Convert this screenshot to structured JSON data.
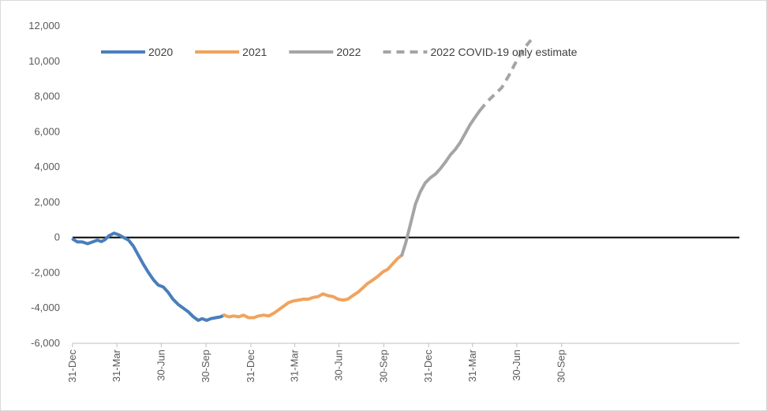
{
  "chart_data": {
    "type": "line",
    "title": "",
    "xlabel": "",
    "ylabel": "",
    "ylim": [
      -6000,
      12000
    ],
    "xlim": [
      "2019-12-31",
      "2023-09-30"
    ],
    "yticks": [
      -6000,
      -4000,
      -2000,
      0,
      2000,
      4000,
      6000,
      8000,
      10000,
      12000
    ],
    "ytick_labels": [
      "-6,000",
      "-4,000",
      "-2,000",
      "0",
      "2,000",
      "4,000",
      "6,000",
      "8,000",
      "10,000",
      "12,000"
    ],
    "xticks": [
      "2019-12-31",
      "2020-03-31",
      "2020-06-30",
      "2020-09-30",
      "2020-12-31",
      "2021-03-31",
      "2021-06-30",
      "2021-09-30",
      "2021-12-31",
      "2022-03-31",
      "2022-06-30",
      "2022-09-30"
    ],
    "xtick_labels": [
      "31-Dec",
      "31-Mar",
      "30-Jun",
      "30-Sep",
      "31-Dec",
      "31-Mar",
      "30-Jun",
      "30-Sep",
      "31-Dec",
      "31-Mar",
      "30-Jun",
      "30-Sep"
    ],
    "grid": false,
    "zero_line": true,
    "legend_position": "top-left",
    "series": [
      {
        "name": "2020",
        "color": "#4a7ebb",
        "dash": "solid",
        "points": [
          [
            "2020-01-01",
            -100
          ],
          [
            "2020-01-10",
            -250
          ],
          [
            "2020-01-20",
            -250
          ],
          [
            "2020-01-31",
            -350
          ],
          [
            "2020-02-10",
            -250
          ],
          [
            "2020-02-20",
            -150
          ],
          [
            "2020-02-28",
            -230
          ],
          [
            "2020-03-06",
            -130
          ],
          [
            "2020-03-15",
            100
          ],
          [
            "2020-03-25",
            250
          ],
          [
            "2020-04-04",
            150
          ],
          [
            "2020-04-14",
            0
          ],
          [
            "2020-04-24",
            -150
          ],
          [
            "2020-05-04",
            -500
          ],
          [
            "2020-05-14",
            -1000
          ],
          [
            "2020-05-24",
            -1500
          ],
          [
            "2020-06-04",
            -2000
          ],
          [
            "2020-06-14",
            -2400
          ],
          [
            "2020-06-24",
            -2700
          ],
          [
            "2020-07-04",
            -2800
          ],
          [
            "2020-07-14",
            -3100
          ],
          [
            "2020-07-24",
            -3500
          ],
          [
            "2020-08-04",
            -3800
          ],
          [
            "2020-08-14",
            -4000
          ],
          [
            "2020-08-24",
            -4200
          ],
          [
            "2020-09-04",
            -4500
          ],
          [
            "2020-09-14",
            -4700
          ],
          [
            "2020-09-22",
            -4600
          ],
          [
            "2020-10-01",
            -4700
          ],
          [
            "2020-10-10",
            -4600
          ],
          [
            "2020-10-20",
            -4550
          ],
          [
            "2020-10-30",
            -4500
          ],
          [
            "2020-11-06",
            -4400
          ]
        ]
      },
      {
        "name": "2021",
        "color": "#f0a35e",
        "dash": "solid",
        "points": [
          [
            "2020-11-06",
            -4400
          ],
          [
            "2020-11-16",
            -4500
          ],
          [
            "2020-11-26",
            -4450
          ],
          [
            "2020-12-06",
            -4500
          ],
          [
            "2020-12-16",
            -4400
          ],
          [
            "2020-12-26",
            -4550
          ],
          [
            "2021-01-06",
            -4550
          ],
          [
            "2021-01-16",
            -4450
          ],
          [
            "2021-01-26",
            -4400
          ],
          [
            "2021-02-06",
            -4450
          ],
          [
            "2021-02-16",
            -4300
          ],
          [
            "2021-02-26",
            -4100
          ],
          [
            "2021-03-08",
            -3900
          ],
          [
            "2021-03-18",
            -3700
          ],
          [
            "2021-03-28",
            -3600
          ],
          [
            "2021-04-08",
            -3550
          ],
          [
            "2021-04-18",
            -3500
          ],
          [
            "2021-04-28",
            -3500
          ],
          [
            "2021-05-08",
            -3400
          ],
          [
            "2021-05-18",
            -3350
          ],
          [
            "2021-05-28",
            -3200
          ],
          [
            "2021-06-08",
            -3300
          ],
          [
            "2021-06-18",
            -3350
          ],
          [
            "2021-06-28",
            -3500
          ],
          [
            "2021-07-08",
            -3550
          ],
          [
            "2021-07-18",
            -3500
          ],
          [
            "2021-07-28",
            -3300
          ],
          [
            "2021-08-08",
            -3100
          ],
          [
            "2021-08-18",
            -2850
          ],
          [
            "2021-08-28",
            -2600
          ],
          [
            "2021-09-08",
            -2400
          ],
          [
            "2021-09-18",
            -2200
          ],
          [
            "2021-09-28",
            -1950
          ],
          [
            "2021-10-08",
            -1800
          ],
          [
            "2021-10-18",
            -1500
          ],
          [
            "2021-10-28",
            -1200
          ],
          [
            "2021-11-06",
            -1000
          ]
        ]
      },
      {
        "name": "2022",
        "color": "#a5a5a5",
        "dash": "solid",
        "points": [
          [
            "2021-11-06",
            -1000
          ],
          [
            "2021-11-14",
            -300
          ],
          [
            "2021-11-24",
            800
          ],
          [
            "2021-12-04",
            1900
          ],
          [
            "2021-12-14",
            2600
          ],
          [
            "2021-12-24",
            3100
          ],
          [
            "2022-01-04",
            3400
          ],
          [
            "2022-01-14",
            3600
          ],
          [
            "2022-01-24",
            3900
          ],
          [
            "2022-02-04",
            4300
          ],
          [
            "2022-02-14",
            4700
          ],
          [
            "2022-02-24",
            5000
          ],
          [
            "2022-03-06",
            5400
          ],
          [
            "2022-03-16",
            5900
          ],
          [
            "2022-03-26",
            6400
          ],
          [
            "2022-04-05",
            6800
          ],
          [
            "2022-04-15",
            7200
          ]
        ]
      },
      {
        "name": "2022 COVID-19 only estimate",
        "color": "#a5a5a5",
        "dash": "dashed",
        "points": [
          [
            "2022-04-15",
            7200
          ],
          [
            "2022-04-30",
            7700
          ],
          [
            "2022-05-15",
            8100
          ],
          [
            "2022-05-30",
            8500
          ],
          [
            "2022-06-14",
            9200
          ],
          [
            "2022-06-29",
            10000
          ],
          [
            "2022-07-14",
            10700
          ],
          [
            "2022-07-29",
            11200
          ]
        ]
      }
    ]
  }
}
